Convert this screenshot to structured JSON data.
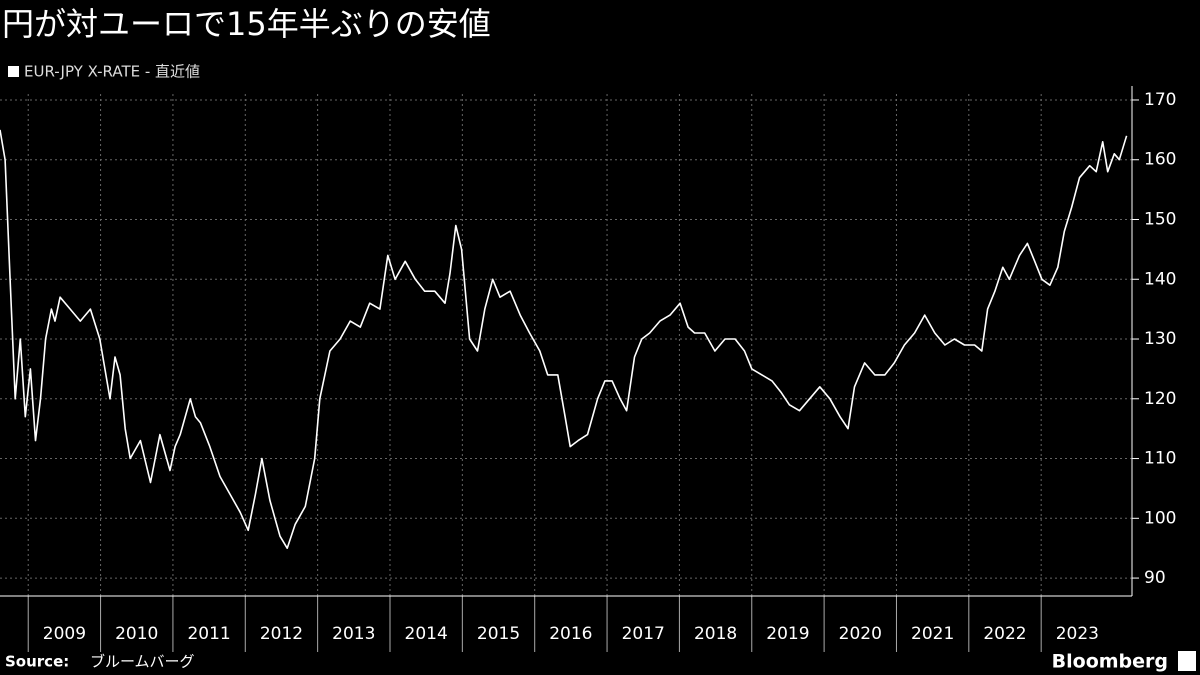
{
  "chart_data": {
    "type": "line",
    "title": "円が対ユーロで15年半ぶりの安値",
    "source_label": "Source:",
    "source": "ブルームバーグ",
    "brand": "Bloomberg",
    "xlim": [
      2008.61,
      2024.2
    ],
    "ylim": [
      87,
      171
    ],
    "xticks": [
      2009,
      2010,
      2011,
      2012,
      2013,
      2014,
      2015,
      2016,
      2017,
      2018,
      2019,
      2020,
      2021,
      2022,
      2023
    ],
    "yticks": [
      90,
      100,
      110,
      120,
      130,
      140,
      150,
      160,
      170
    ],
    "grid": true,
    "series": [
      {
        "name": "EUR-JPY X-RATE - 直近値",
        "color": "#ffffff",
        "x": [
          2008.61,
          2008.68,
          2008.75,
          2008.82,
          2008.89,
          2008.96,
          2009.03,
          2009.1,
          2009.17,
          2009.24,
          2009.32,
          2009.37,
          2009.44,
          2009.58,
          2009.72,
          2009.86,
          2009.99,
          2010.06,
          2010.13,
          2010.2,
          2010.27,
          2010.34,
          2010.41,
          2010.55,
          2010.69,
          2010.82,
          2010.96,
          2011.03,
          2011.1,
          2011.24,
          2011.31,
          2011.38,
          2011.51,
          2011.65,
          2011.79,
          2011.93,
          2012.04,
          2012.14,
          2012.23,
          2012.34,
          2012.48,
          2012.58,
          2012.69,
          2012.83,
          2012.96,
          2013.03,
          2013.17,
          2013.31,
          2013.45,
          2013.59,
          2013.72,
          2013.86,
          2013.97,
          2014.07,
          2014.21,
          2014.35,
          2014.48,
          2014.62,
          2014.76,
          2014.83,
          2014.91,
          2014.99,
          2015.1,
          2015.21,
          2015.31,
          2015.42,
          2015.52,
          2015.66,
          2015.8,
          2015.93,
          2016.07,
          2016.18,
          2016.32,
          2016.42,
          2016.49,
          2016.6,
          2016.73,
          2016.87,
          2016.97,
          2017.07,
          2017.18,
          2017.27,
          2017.38,
          2017.48,
          2017.59,
          2017.73,
          2017.87,
          2018.01,
          2018.12,
          2018.21,
          2018.35,
          2018.49,
          2018.63,
          2018.77,
          2018.9,
          2019.0,
          2019.14,
          2019.28,
          2019.41,
          2019.52,
          2019.66,
          2019.8,
          2019.94,
          2020.08,
          2020.22,
          2020.33,
          2020.42,
          2020.56,
          2020.7,
          2020.84,
          2020.97,
          2021.11,
          2021.25,
          2021.39,
          2021.53,
          2021.67,
          2021.8,
          2021.94,
          2022.08,
          2022.18,
          2022.26,
          2022.36,
          2022.47,
          2022.56,
          2022.7,
          2022.81,
          2022.91,
          2023.01,
          2023.12,
          2023.23,
          2023.32,
          2023.42,
          2023.53,
          2023.67,
          2023.76,
          2023.85,
          2023.92,
          2024.01,
          2024.08,
          2024.18
        ],
        "values": [
          165,
          160,
          140,
          120,
          130,
          117,
          125,
          113,
          120,
          130,
          135,
          133,
          137,
          135,
          133,
          135,
          130,
          125,
          120,
          127,
          124,
          115,
          110,
          113,
          106,
          114,
          108,
          112,
          114,
          120,
          117,
          116,
          112,
          107,
          104,
          101,
          98,
          104,
          110,
          103,
          97,
          95,
          99,
          102,
          110,
          120,
          128,
          130,
          133,
          132,
          136,
          135,
          144,
          140,
          143,
          140,
          138,
          138,
          136,
          141,
          149,
          145,
          130,
          128,
          135,
          140,
          137,
          138,
          134,
          131,
          128,
          124,
          124,
          117,
          112,
          113,
          114,
          120,
          123,
          123,
          120,
          118,
          127,
          130,
          131,
          133,
          134,
          136,
          132,
          131,
          131,
          128,
          130,
          130,
          128,
          125,
          124,
          123,
          121,
          119,
          118,
          120,
          122,
          120,
          117,
          115,
          122,
          126,
          124,
          124,
          126,
          129,
          131,
          134,
          131,
          129,
          130,
          129,
          129,
          128,
          135,
          138,
          142,
          140,
          144,
          146,
          143,
          140,
          139,
          142,
          148,
          152,
          157,
          159,
          158,
          163,
          158,
          161,
          160,
          164
        ]
      }
    ]
  }
}
